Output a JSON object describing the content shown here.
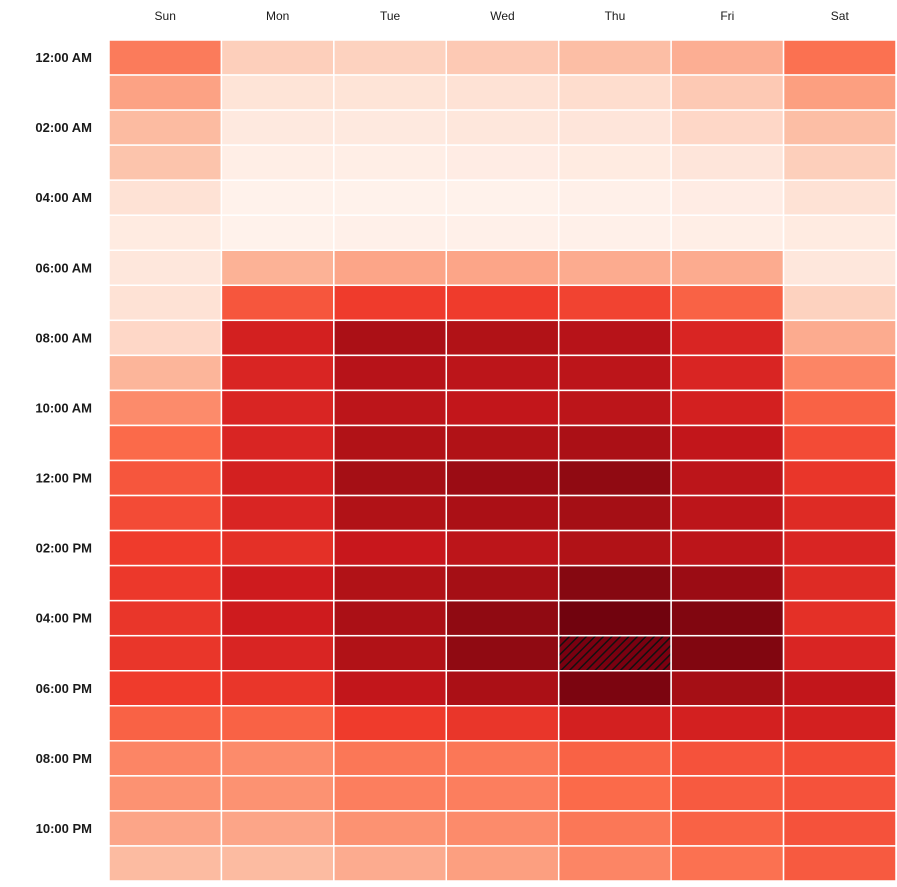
{
  "chart_data": {
    "type": "heatmap",
    "title": "",
    "xlabel": "",
    "ylabel": "",
    "columns": [
      "Sun",
      "Mon",
      "Tue",
      "Wed",
      "Thu",
      "Fri",
      "Sat"
    ],
    "row_tick_labels": [
      "12:00 AM",
      "02:00 AM",
      "04:00 AM",
      "06:00 AM",
      "08:00 AM",
      "10:00 AM",
      "12:00 PM",
      "02:00 PM",
      "04:00 PM",
      "06:00 PM",
      "08:00 PM",
      "10:00 PM"
    ],
    "rows": [
      "12:00 AM",
      "01:00 AM",
      "02:00 AM",
      "03:00 AM",
      "04:00 AM",
      "05:00 AM",
      "06:00 AM",
      "07:00 AM",
      "08:00 AM",
      "09:00 AM",
      "10:00 AM",
      "11:00 AM",
      "12:00 PM",
      "01:00 PM",
      "02:00 PM",
      "03:00 PM",
      "04:00 PM",
      "05:00 PM",
      "06:00 PM",
      "07:00 PM",
      "08:00 PM",
      "09:00 PM",
      "10:00 PM",
      "11:00 PM"
    ],
    "values_scale": [
      0,
      100
    ],
    "values": [
      [
        45,
        18,
        17,
        20,
        24,
        29,
        48
      ],
      [
        33,
        10,
        10,
        11,
        13,
        20,
        34
      ],
      [
        25,
        7,
        7,
        8,
        9,
        15,
        24
      ],
      [
        22,
        4,
        4,
        5,
        6,
        9,
        18
      ],
      [
        11,
        2,
        2,
        2,
        3,
        5,
        11
      ],
      [
        6,
        2,
        3,
        3,
        3,
        4,
        6
      ],
      [
        8,
        28,
        32,
        32,
        30,
        30,
        8
      ],
      [
        11,
        55,
        62,
        62,
        60,
        52,
        17
      ],
      [
        15,
        72,
        86,
        84,
        82,
        70,
        30
      ],
      [
        27,
        70,
        82,
        80,
        80,
        70,
        42
      ],
      [
        40,
        70,
        80,
        78,
        80,
        72,
        52
      ],
      [
        50,
        70,
        84,
        84,
        86,
        78,
        58
      ],
      [
        55,
        72,
        88,
        90,
        92,
        80,
        64
      ],
      [
        58,
        70,
        84,
        86,
        88,
        80,
        68
      ],
      [
        62,
        66,
        76,
        80,
        84,
        80,
        70
      ],
      [
        63,
        74,
        84,
        88,
        94,
        90,
        68
      ],
      [
        64,
        74,
        86,
        92,
        98,
        95,
        66
      ],
      [
        64,
        70,
        84,
        92,
        100,
        95,
        70
      ],
      [
        62,
        64,
        78,
        86,
        96,
        88,
        78
      ],
      [
        52,
        52,
        62,
        64,
        72,
        72,
        72
      ],
      [
        42,
        40,
        46,
        46,
        52,
        56,
        58
      ],
      [
        38,
        38,
        44,
        44,
        50,
        54,
        56
      ],
      [
        32,
        32,
        38,
        40,
        46,
        52,
        56
      ],
      [
        25,
        25,
        30,
        34,
        42,
        48,
        54
      ]
    ],
    "highlight_cell": {
      "row": "05:00 PM",
      "column": "Thu"
    },
    "color_low": "#fff5f0",
    "color_high": "#67000d",
    "grid": false,
    "legend": "none"
  }
}
